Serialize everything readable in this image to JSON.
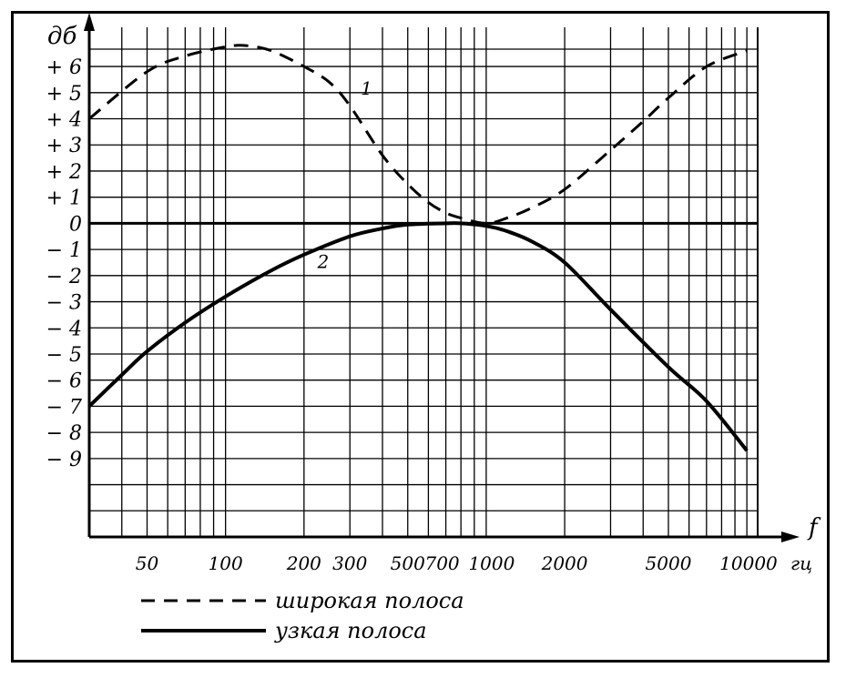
{
  "chart_data": {
    "type": "line",
    "x_scale": "log",
    "xlim": [
      30,
      11000
    ],
    "ylim": [
      -12,
      7.5
    ],
    "grid": true,
    "ylabel": "дб",
    "xlabel": "f",
    "x_unit": "гц",
    "y_ticks": [
      {
        "value": 6,
        "label": "+ 6"
      },
      {
        "value": 5,
        "label": "+ 5"
      },
      {
        "value": 4,
        "label": "+ 4"
      },
      {
        "value": 3,
        "label": "+ 3"
      },
      {
        "value": 2,
        "label": "+ 2"
      },
      {
        "value": 1,
        "label": "+ 1"
      },
      {
        "value": 0,
        "label": "0"
      },
      {
        "value": -1,
        "label": "− 1"
      },
      {
        "value": -2,
        "label": "− 2"
      },
      {
        "value": -3,
        "label": "− 3"
      },
      {
        "value": -4,
        "label": "− 4"
      },
      {
        "value": -5,
        "label": "− 5"
      },
      {
        "value": -6,
        "label": "− 6"
      },
      {
        "value": -7,
        "label": "− 7"
      },
      {
        "value": -8,
        "label": "− 8"
      },
      {
        "value": -9,
        "label": "− 9"
      }
    ],
    "x_ticks": [
      {
        "value": 50,
        "label": "50"
      },
      {
        "value": 100,
        "label": "100"
      },
      {
        "value": 200,
        "label": "200"
      },
      {
        "value": 300,
        "label": "300"
      },
      {
        "value": 500,
        "label": "500"
      },
      {
        "value": 700,
        "label": "700"
      },
      {
        "value": 1000,
        "label": "1000"
      },
      {
        "value": 2000,
        "label": "2000"
      },
      {
        "value": 5000,
        "label": "5000"
      },
      {
        "value": 10000,
        "label": "10000"
      }
    ],
    "series": [
      {
        "number_label": "1",
        "legend": "широкая полоса",
        "style": "dashed",
        "x": [
          30,
          50,
          70,
          100,
          120,
          150,
          200,
          250,
          300,
          400,
          500,
          600,
          700,
          800,
          1000,
          1200,
          1500,
          2000,
          3000,
          4000,
          5000,
          7000,
          10000
        ],
        "y": [
          4.0,
          5.8,
          6.4,
          6.75,
          6.8,
          6.6,
          6.0,
          5.4,
          4.5,
          2.6,
          1.5,
          0.8,
          0.4,
          0.2,
          0.0,
          0.2,
          0.6,
          1.3,
          2.8,
          3.9,
          4.8,
          6.0,
          6.6
        ]
      },
      {
        "number_label": "2",
        "legend": "узкая полоса",
        "style": "solid",
        "x": [
          30,
          40,
          50,
          70,
          100,
          150,
          200,
          300,
          400,
          500,
          700,
          800,
          1000,
          1200,
          1500,
          2000,
          3000,
          5000,
          7000,
          10000
        ],
        "y": [
          -7.0,
          -5.8,
          -4.9,
          -3.8,
          -2.8,
          -1.8,
          -1.2,
          -0.5,
          -0.2,
          -0.05,
          0.0,
          0.0,
          -0.1,
          -0.3,
          -0.7,
          -1.5,
          -3.3,
          -5.5,
          -6.8,
          -8.7
        ]
      }
    ]
  },
  "legend": {
    "dashed_label": "широкая полоса",
    "solid_label": "узкая полоса"
  }
}
